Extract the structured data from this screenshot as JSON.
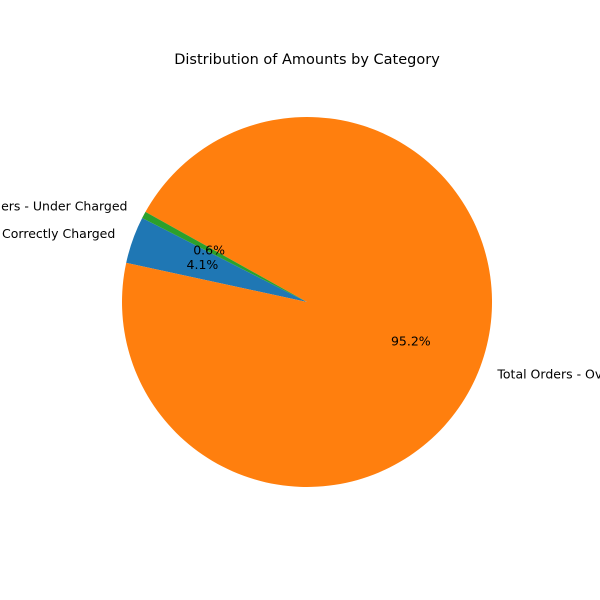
{
  "chart_data": {
    "type": "pie",
    "title": "Distribution of Amounts by Category",
    "slices": [
      {
        "label": "Total Orders - Correctly Charged",
        "value": 4.1,
        "pct_label": "4.1%",
        "color": "#1f77b4"
      },
      {
        "label": "Total Orders - Over Charged",
        "value": 95.2,
        "pct_label": "95.2%",
        "color": "#ff7f0e"
      },
      {
        "label": "Total Orders - Under Charged",
        "value": 0.6,
        "pct_label": "0.6%",
        "color": "#2ca02c"
      }
    ]
  }
}
